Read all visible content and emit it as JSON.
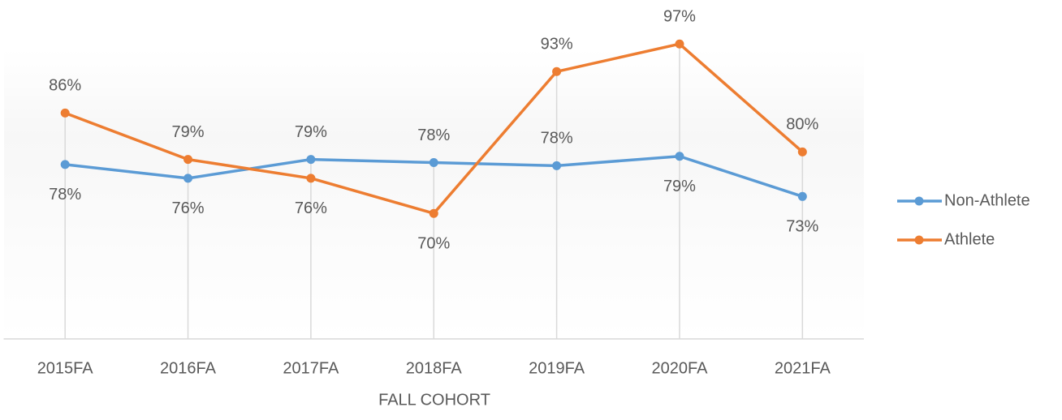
{
  "chart_data": {
    "type": "line",
    "x_label": "FALL COHORT",
    "categories": [
      "2015FA",
      "2016FA",
      "2017FA",
      "2018FA",
      "2019FA",
      "2020FA",
      "2021FA"
    ],
    "ylim": [
      50,
      100
    ],
    "series": [
      {
        "name": "Non-Athlete",
        "color": "#5b9bd5",
        "values": [
          77.8,
          75.6,
          78.6,
          78.1,
          77.6,
          79.1,
          72.7
        ],
        "value_labels": [
          "78%",
          "76%",
          "79%",
          "78%",
          "78%",
          "79%",
          "73%"
        ]
      },
      {
        "name": "Athlete",
        "color": "#ed7d31",
        "values": [
          86,
          78.6,
          75.6,
          70,
          92.6,
          97,
          79.8
        ],
        "value_labels": [
          "86%",
          "79%",
          "76%",
          "70%",
          "93%",
          "97%",
          "80%"
        ]
      }
    ],
    "legend": "right"
  }
}
